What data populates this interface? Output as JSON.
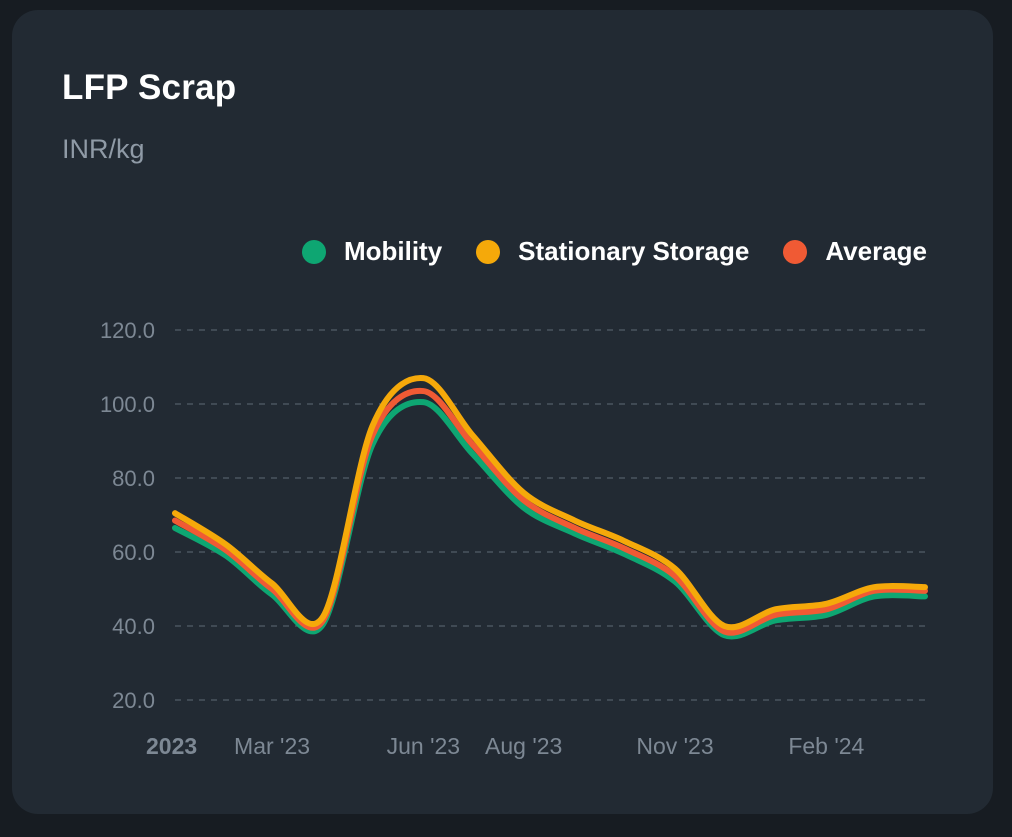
{
  "card": {
    "title": "LFP Scrap",
    "subtitle": "INR/kg"
  },
  "colors": {
    "background": "#171c22",
    "card": "#222a33",
    "grid": "#4a545f",
    "tick_text": "#7d8894",
    "mobility": "#0ea672",
    "stationary_storage": "#f5a90a",
    "average": "#f05a34"
  },
  "chart_data": {
    "type": "line",
    "title": "LFP Scrap",
    "subtitle": "INR/kg",
    "yticks": [
      "20.0",
      "40.0",
      "60.0",
      "80.0",
      "100.0",
      "120.0"
    ],
    "ylim": [
      20,
      120
    ],
    "xlim": [
      "2023-01-01",
      "2024-04-01"
    ],
    "xticks": [
      {
        "label": "2023",
        "date": "2023-01-01",
        "bold": true
      },
      {
        "label": "Mar '23",
        "date": "2023-03-01"
      },
      {
        "label": "Jun '23",
        "date": "2023-06-01"
      },
      {
        "label": "Aug '23",
        "date": "2023-08-01"
      },
      {
        "label": "Nov '23",
        "date": "2023-11-01"
      },
      {
        "label": "Feb '24",
        "date": "2024-02-01"
      }
    ],
    "grid": "horizontal-dashed",
    "legend_position": "top-right",
    "x": [
      "2023-01-01",
      "2023-02-01",
      "2023-03-01",
      "2023-04-01",
      "2023-05-01",
      "2023-06-01",
      "2023-07-01",
      "2023-08-01",
      "2023-09-01",
      "2023-10-01",
      "2023-11-01",
      "2023-12-01",
      "2024-01-01",
      "2024-02-01",
      "2024-03-01",
      "2024-04-01"
    ],
    "series": [
      {
        "name": "Mobility",
        "color_key": "mobility",
        "values": [
          66.5,
          59.0,
          48.5,
          40.5,
          89.0,
          100.5,
          86.5,
          72.0,
          65.0,
          59.5,
          52.0,
          37.5,
          41.5,
          43.0,
          48.0,
          48.0
        ]
      },
      {
        "name": "Stationary Storage",
        "color_key": "stationary_storage",
        "values": [
          70.5,
          62.0,
          51.5,
          42.5,
          94.0,
          107.0,
          91.5,
          76.0,
          68.5,
          63.0,
          55.5,
          40.0,
          44.5,
          46.0,
          50.5,
          50.5
        ]
      },
      {
        "name": "Average",
        "color_key": "average",
        "values": [
          68.5,
          60.5,
          50.0,
          41.5,
          91.5,
          103.5,
          89.0,
          74.0,
          66.5,
          61.0,
          53.5,
          38.5,
          43.0,
          44.5,
          49.5,
          49.5
        ]
      }
    ]
  }
}
